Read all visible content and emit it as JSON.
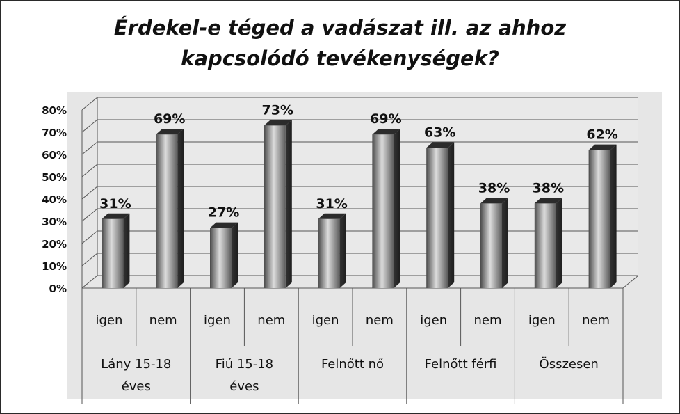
{
  "title_lines": [
    "Érdekel-e téged a vadászat ill. az ahhoz",
    "kapcsolódó tevékenységek?"
  ],
  "chart_data": {
    "type": "bar",
    "title": "Érdekel-e téged a vadászat ill. az ahhoz kapcsolódó tevékenységek?",
    "groups": [
      "Lány 15-18 éves",
      "Fiú 15-18 éves",
      "Felnőtt nő",
      "Felnőtt férfi",
      "Összesen"
    ],
    "subcategories": [
      "igen",
      "nem"
    ],
    "categories": [
      "igen",
      "nem",
      "igen",
      "nem",
      "igen",
      "nem",
      "igen",
      "nem",
      "igen",
      "nem"
    ],
    "values": [
      31,
      69,
      27,
      73,
      31,
      69,
      63,
      38,
      38,
      62
    ],
    "data_labels": [
      "31%",
      "69%",
      "27%",
      "73%",
      "31%",
      "69%",
      "63%",
      "38%",
      "38%",
      "62%"
    ],
    "y_ticks": [
      "0%",
      "10%",
      "20%",
      "30%",
      "40%",
      "50%",
      "60%",
      "70%",
      "80%"
    ],
    "ylim": [
      0,
      80
    ],
    "grid": true,
    "style": "3d-column",
    "colors": {
      "bar_light": "#d9d9d9",
      "bar_dark": "#3a3a3a",
      "plot_bg": "#e6e6e6",
      "grid": "#555555"
    }
  }
}
